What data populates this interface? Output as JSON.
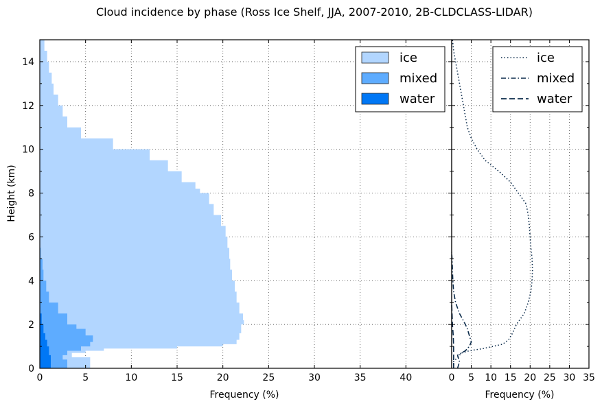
{
  "chart_data": {
    "title": "Cloud incidence by phase (Ross Ice Shelf, JJA, 2007-2010, 2B-CLDCLASS-LIDAR)",
    "colors": {
      "ice": "#b2d6ff",
      "mixed": "#5eacff",
      "water": "#0077f5",
      "line": "#0a2a4a"
    },
    "panels": [
      {
        "type": "area",
        "xlabel": "Frequency (%)",
        "ylabel": "Height (km)",
        "xlim": [
          0,
          45
        ],
        "ylim": [
          0,
          15
        ],
        "xticks": [
          "0",
          "5",
          "10",
          "15",
          "20",
          "25",
          "30",
          "35",
          "40"
        ],
        "yticks": [
          "0",
          "2",
          "4",
          "6",
          "8",
          "10",
          "12",
          "14"
        ],
        "grid": true,
        "legend": {
          "position": "top-right",
          "entries": [
            "ice",
            "mixed",
            "water"
          ]
        },
        "series": [
          {
            "name": "ice",
            "y": [
              0,
              0.3,
              0.5,
              0.7,
              0.8,
              0.9,
              1.0,
              1.1,
              1.3,
              1.6,
              2.0,
              2.2,
              2.5,
              3.0,
              3.5,
              4.0,
              4.5,
              5.0,
              5.5,
              6.0,
              6.5,
              7.0,
              7.5,
              8.0,
              8.2,
              8.5,
              9.0,
              9.5,
              10.0,
              10.5,
              11.0,
              11.5,
              12.0,
              12.5,
              13.0,
              13.5,
              14.0,
              14.5,
              15.0
            ],
            "x": [
              5.5,
              5.5,
              3.5,
              5.0,
              7.0,
              15.0,
              20.0,
              21.5,
              21.8,
              22.0,
              22.3,
              22.2,
              21.8,
              21.5,
              21.3,
              21.0,
              20.8,
              20.7,
              20.5,
              20.3,
              19.8,
              19.0,
              18.5,
              17.5,
              17.0,
              15.5,
              14.0,
              12.0,
              8.0,
              4.5,
              3.0,
              2.5,
              2.0,
              1.5,
              1.3,
              1.0,
              0.8,
              0.5,
              0.3
            ]
          },
          {
            "name": "mixed",
            "y": [
              0,
              0.2,
              0.4,
              0.6,
              0.8,
              1.0,
              1.2,
              1.5,
              1.8,
              2.0,
              2.5,
              3.0,
              3.5,
              4.0,
              4.5,
              5.0,
              5.5
            ],
            "x": [
              3.0,
              3.0,
              2.5,
              3.0,
              4.5,
              5.5,
              5.8,
              5.0,
              4.0,
              3.0,
              2.0,
              1.0,
              0.7,
              0.4,
              0.3,
              0.1,
              0.0
            ]
          },
          {
            "name": "water",
            "y": [
              0,
              0.3,
              0.6,
              1.0,
              1.3,
              1.6,
              2.0,
              2.5
            ],
            "x": [
              1.2,
              1.2,
              1.0,
              0.8,
              0.6,
              0.4,
              0.2,
              0.0
            ]
          }
        ]
      },
      {
        "type": "line",
        "xlabel": "Frequency (%)",
        "xlim": [
          0,
          35
        ],
        "ylim": [
          0,
          15
        ],
        "xticks": [
          "0",
          "5",
          "10",
          "15",
          "20",
          "25",
          "30",
          "35"
        ],
        "grid": true,
        "legend": {
          "position": "top-right",
          "entries": [
            "ice",
            "mixed",
            "water"
          ]
        },
        "series": [
          {
            "name": "ice",
            "style": "dotted",
            "y": [
              0,
              0.3,
              0.5,
              0.7,
              0.8,
              0.9,
              1.0,
              1.1,
              1.3,
              1.6,
              2.0,
              2.5,
              3.0,
              3.5,
              4.0,
              4.5,
              5.0,
              5.5,
              6.0,
              6.5,
              7.0,
              7.5,
              8.0,
              8.5,
              9.0,
              9.5,
              10.0,
              10.5,
              11.0,
              11.5,
              12.0,
              12.5,
              13.0,
              13.5,
              14.0,
              14.5,
              15.0
            ],
            "x": [
              0.5,
              0.5,
              1.5,
              2.5,
              4.5,
              8.0,
              10.5,
              13.0,
              14.5,
              15.5,
              16.5,
              18.5,
              19.5,
              20.2,
              20.5,
              20.6,
              20.5,
              20.2,
              20.0,
              19.8,
              19.5,
              19.0,
              17.0,
              15.0,
              12.0,
              8.5,
              6.5,
              5.0,
              4.0,
              3.5,
              3.0,
              2.5,
              2.0,
              1.5,
              1.0,
              0.5,
              0.2
            ]
          },
          {
            "name": "mixed",
            "style": "dashdot",
            "y": [
              0,
              0.3,
              0.6,
              0.8,
              1.0,
              1.2,
              1.5,
              1.8,
              2.0,
              2.5,
              3.0,
              3.5,
              4.0,
              4.5,
              5.0,
              5.3
            ],
            "x": [
              1.5,
              2.0,
              1.5,
              3.5,
              4.5,
              5.0,
              4.5,
              4.0,
              3.5,
              2.0,
              1.0,
              0.5,
              0.3,
              0.2,
              0.1,
              0.0
            ]
          },
          {
            "name": "water",
            "style": "dashed",
            "y": [
              0,
              0.5,
              1.0,
              1.5,
              2.0,
              2.5,
              3.0
            ],
            "x": [
              0.5,
              0.5,
              0.5,
              0.4,
              0.2,
              0.1,
              0.0
            ]
          }
        ]
      }
    ]
  }
}
